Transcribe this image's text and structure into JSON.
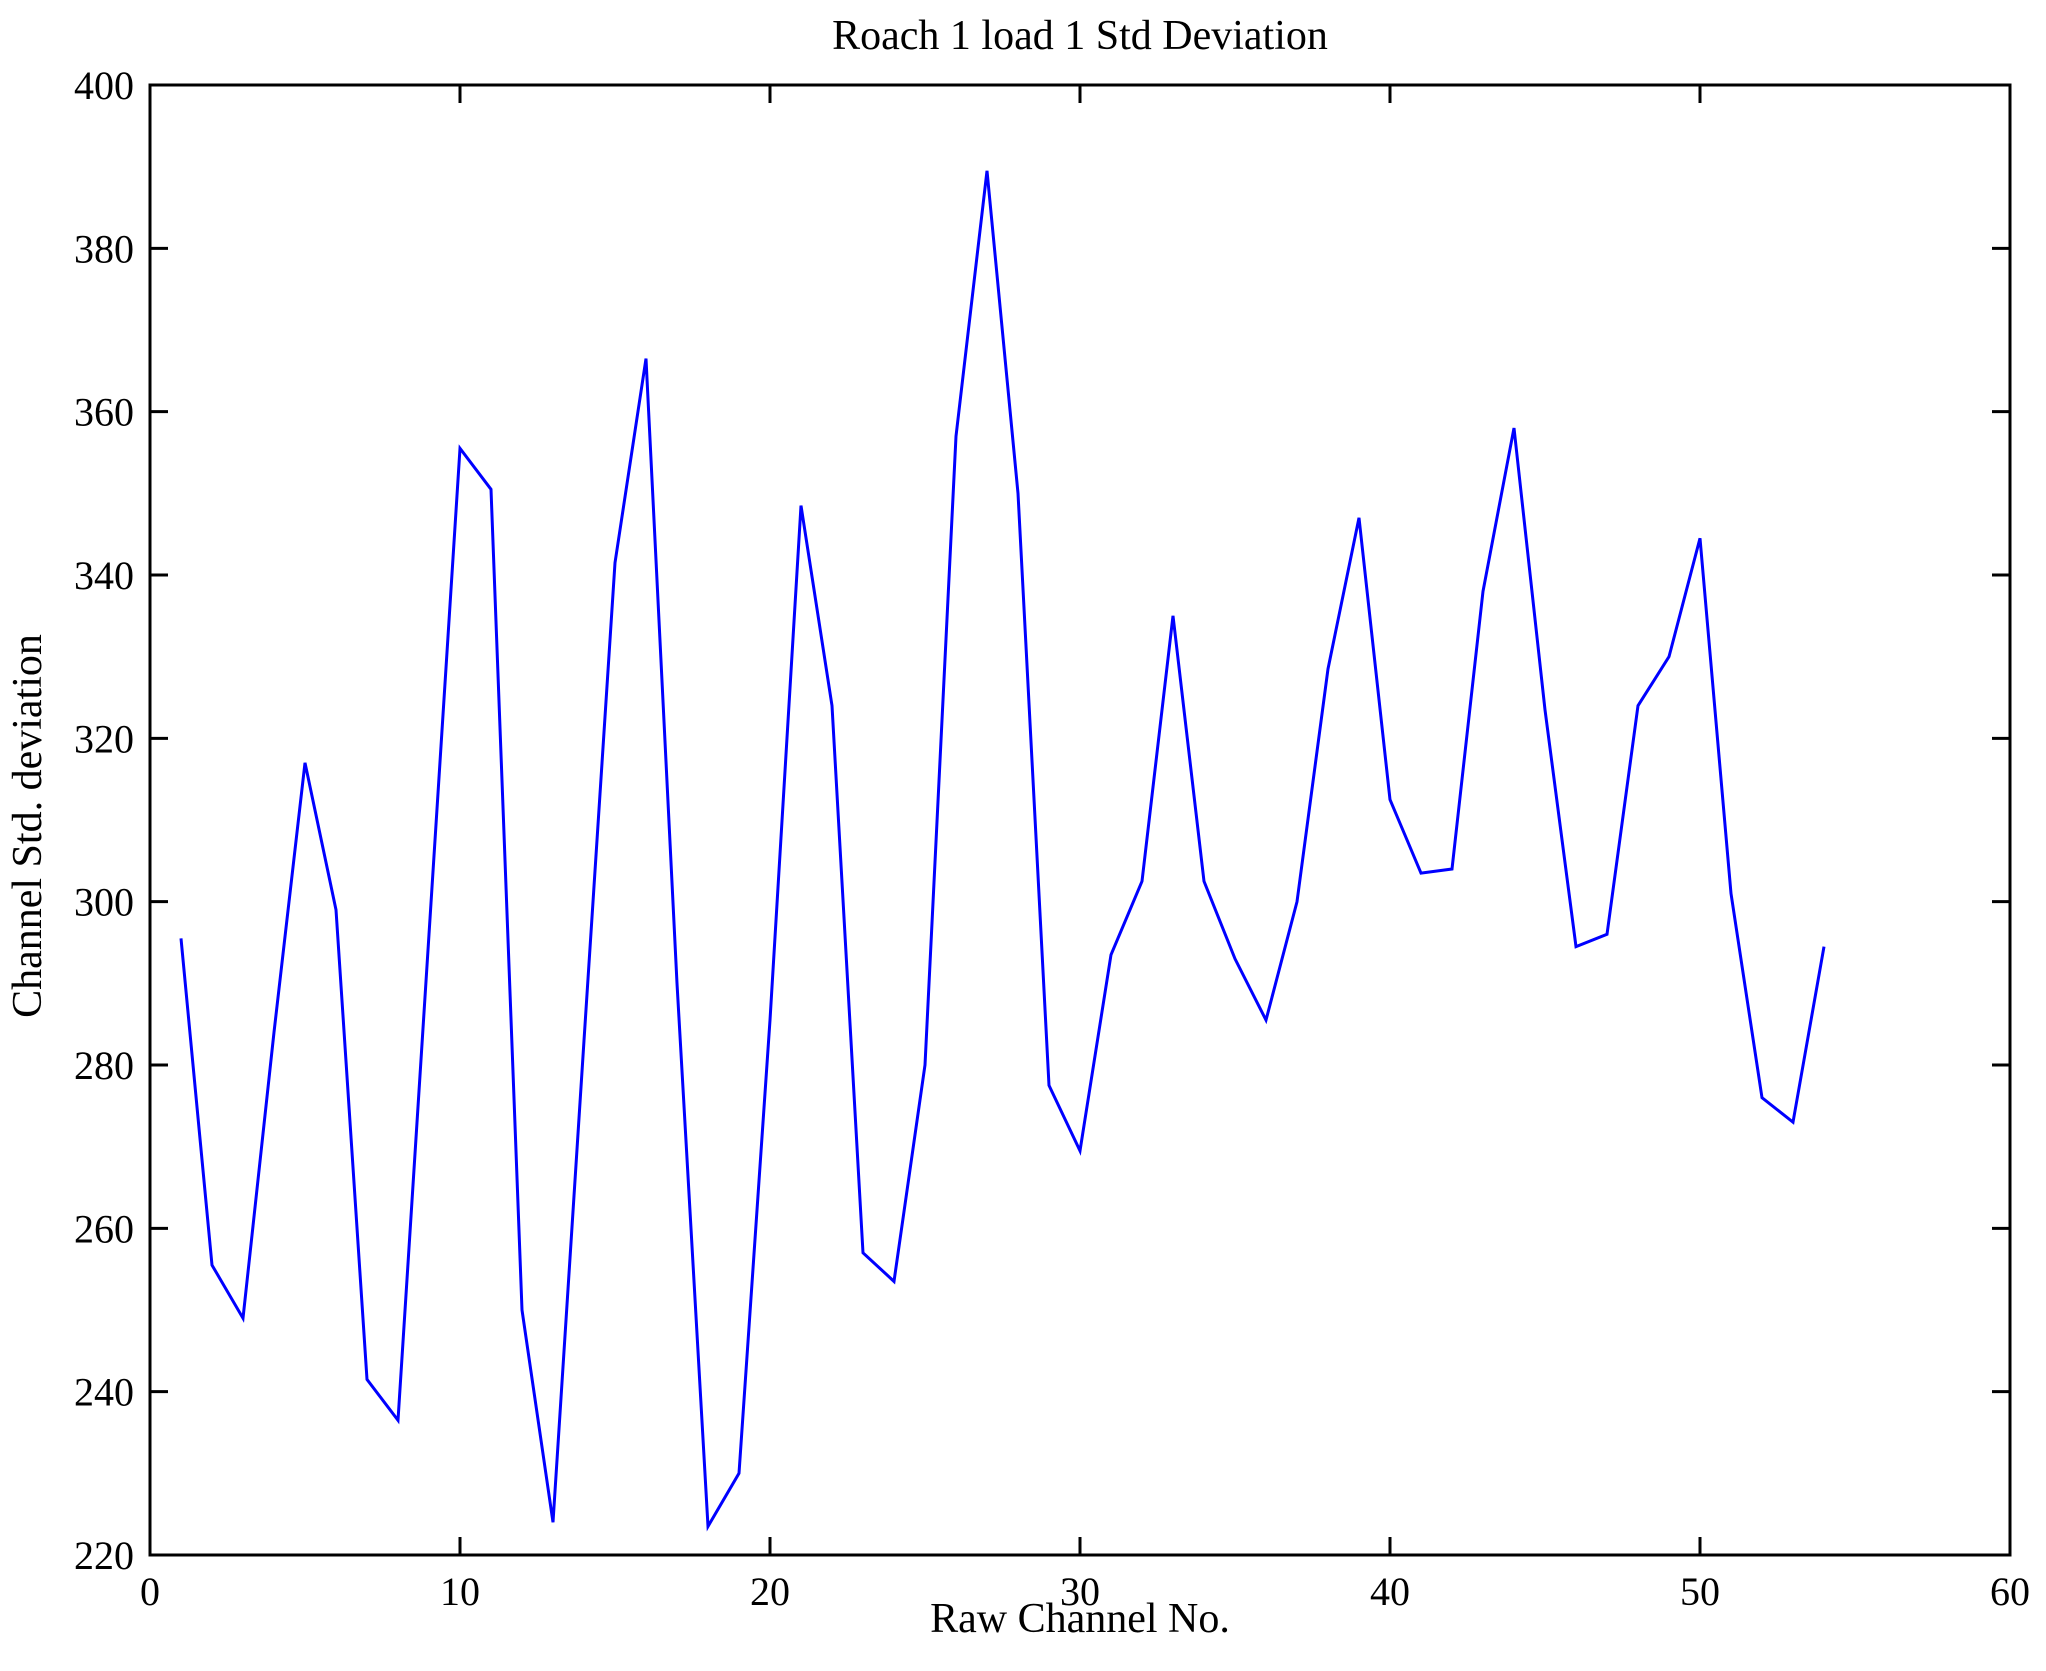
{
  "figure": {
    "background": "#ffffff",
    "axis_color": "#000000"
  },
  "chart_data": {
    "type": "line",
    "title": "Roach 1 load 1 Std Deviation",
    "xlabel": "Raw Channel No.",
    "ylabel": "Channel Std. deviation",
    "xlim": [
      0,
      60
    ],
    "ylim": [
      220,
      400
    ],
    "xticks": [
      0,
      10,
      20,
      30,
      40,
      50,
      60
    ],
    "yticks": [
      220,
      240,
      260,
      280,
      300,
      320,
      340,
      360,
      380,
      400
    ],
    "grid": false,
    "legend": "none",
    "line_color": "#0000ff",
    "line_width": 3,
    "x": [
      1,
      2,
      3,
      4,
      5,
      6,
      7,
      8,
      9,
      10,
      11,
      12,
      13,
      14,
      15,
      16,
      17,
      18,
      19,
      20,
      21,
      22,
      23,
      24,
      25,
      26,
      27,
      28,
      29,
      30,
      31,
      32,
      33,
      34,
      35,
      36,
      37,
      38,
      39,
      40,
      41,
      42,
      43,
      44,
      45,
      46,
      47,
      48,
      49,
      50,
      51,
      52,
      53,
      54
    ],
    "values": [
      295.5,
      255.5,
      249,
      284,
      317,
      299,
      241.5,
      236.5,
      296,
      355.5,
      350.5,
      250,
      224,
      283,
      341.5,
      366.5,
      290,
      223.5,
      230,
      285.5,
      348.5,
      324,
      257,
      253.5,
      280,
      357,
      389.5,
      350,
      277.5,
      269.5,
      293.5,
      302.5,
      335,
      302.5,
      293,
      285.5,
      300,
      328.5,
      347,
      312.5,
      303.5,
      304,
      338,
      358,
      323.5,
      294.5,
      296,
      324,
      330,
      344.5,
      301,
      276,
      273,
      294.5
    ]
  }
}
